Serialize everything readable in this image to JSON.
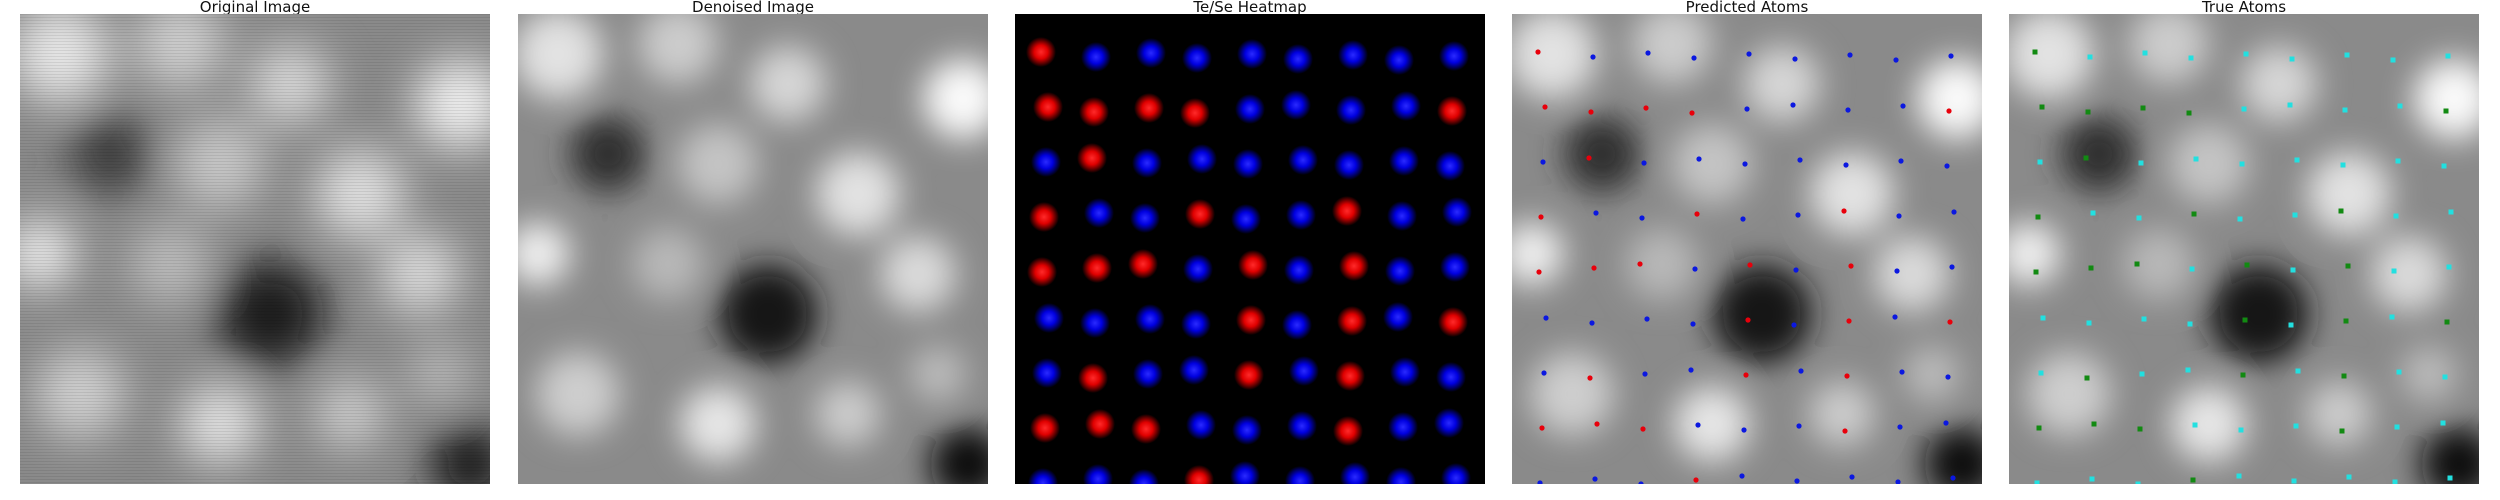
{
  "figure": {
    "panels": [
      {
        "title": "Original Image"
      },
      {
        "title": "Denoised Image"
      },
      {
        "title": "Te/Se Heatmap"
      },
      {
        "title": "Predicted Atoms"
      },
      {
        "title": "True Atoms"
      }
    ],
    "colors": {
      "te_red": "#ff1a1a",
      "se_blue": "#1a1aff",
      "pred_red": "#e8000b",
      "pred_blue": "#0b18e0",
      "true_cyan": "#22e0e0",
      "true_green": "#128a12"
    }
  }
}
